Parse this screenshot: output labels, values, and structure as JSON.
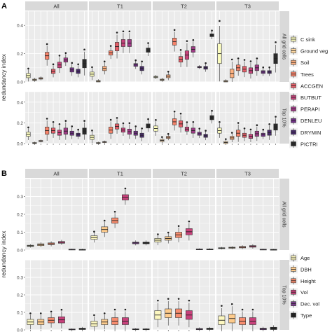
{
  "chart_data": [
    {
      "panel_letter": "A",
      "type": "box",
      "ylabel": "redundancy index",
      "ylim": [
        0,
        0.5
      ],
      "yticks": [
        0.0,
        0.2,
        0.4
      ],
      "ytick_labels": [
        "0.0",
        "0.2",
        "0.4"
      ],
      "columns": [
        "All",
        "T1",
        "T2",
        "T3"
      ],
      "rows": [
        "All grid cells",
        "Top 10%"
      ],
      "grid": true,
      "legend": {
        "placement": "right",
        "entries": [
          {
            "name": "C sink",
            "color": "#FCFDBF"
          },
          {
            "name": "Ground veg",
            "color": "#FDD7A0"
          },
          {
            "name": "Soil",
            "color": "#FDB07F"
          },
          {
            "name": "Trees",
            "color": "#F6836A"
          },
          {
            "name": "ACCGEN",
            "color": "#E45E68"
          },
          {
            "name": "BUTBUT",
            "color": "#C6437B"
          },
          {
            "name": "PERAPI",
            "color": "#9E3A85"
          },
          {
            "name": "DENLEU",
            "color": "#713087"
          },
          {
            "name": "DRYMIN",
            "color": "#472A69"
          },
          {
            "name": "PICTRI",
            "color": "#2A2A2A"
          }
        ]
      },
      "boxes": [
        [
          [
            [
              0.03,
              0.06
            ],
            [
              0.01,
              0.02
            ],
            [
              0.02,
              0.03
            ],
            [
              0.16,
              0.21
            ],
            [
              0.06,
              0.09
            ],
            [
              0.1,
              0.14
            ],
            [
              0.14,
              0.17
            ],
            [
              0.07,
              0.1
            ],
            [
              0.06,
              0.09
            ],
            [
              0.1,
              0.16
            ]
          ],
          [
            [
              0.04,
              0.07
            ],
            [
              0.0,
              0.01
            ],
            [
              0.08,
              0.11
            ],
            [
              0.19,
              0.22
            ],
            [
              0.22,
              0.28
            ],
            [
              0.25,
              0.3
            ],
            [
              0.25,
              0.3
            ],
            [
              0.11,
              0.13
            ],
            [
              0.08,
              0.11
            ],
            [
              0.21,
              0.24
            ]
          ],
          [
            [
              0.03,
              0.04
            ],
            [
              0.01,
              0.02
            ],
            [
              0.03,
              0.05
            ],
            [
              0.26,
              0.31
            ],
            [
              0.14,
              0.18
            ],
            [
              0.16,
              0.22
            ],
            [
              0.21,
              0.25
            ],
            [
              0.1,
              0.11
            ],
            [
              0.09,
              0.11
            ],
            [
              0.32,
              0.34
            ]
          ],
          [
            [
              0.13,
              0.27
            ],
            [
              0.0,
              0.01
            ],
            [
              0.03,
              0.09
            ],
            [
              0.08,
              0.12
            ],
            [
              0.07,
              0.11
            ],
            [
              0.06,
              0.1
            ],
            [
              0.08,
              0.12
            ],
            [
              0.06,
              0.08
            ],
            [
              0.06,
              0.08
            ],
            [
              0.13,
              0.2
            ]
          ]
        ],
        [
          [
            [
              0.07,
              0.11
            ],
            [
              0.0,
              0.01
            ],
            [
              0.02,
              0.03
            ],
            [
              0.09,
              0.16
            ],
            [
              0.1,
              0.15
            ],
            [
              0.08,
              0.13
            ],
            [
              0.09,
              0.15
            ],
            [
              0.08,
              0.12
            ],
            [
              0.07,
              0.1
            ],
            [
              0.09,
              0.15
            ]
          ],
          [
            [
              0.04,
              0.08
            ],
            [
              0.0,
              0.01
            ],
            [
              0.01,
              0.02
            ],
            [
              0.1,
              0.16
            ],
            [
              0.14,
              0.19
            ],
            [
              0.11,
              0.15
            ],
            [
              0.09,
              0.14
            ],
            [
              0.08,
              0.12
            ],
            [
              0.06,
              0.1
            ],
            [
              0.15,
              0.19
            ]
          ],
          [
            [
              0.12,
              0.17
            ],
            [
              0.02,
              0.04
            ],
            [
              0.05,
              0.07
            ],
            [
              0.18,
              0.24
            ],
            [
              0.16,
              0.22
            ],
            [
              0.12,
              0.16
            ],
            [
              0.1,
              0.15
            ],
            [
              0.08,
              0.11
            ],
            [
              0.06,
              0.09
            ],
            [
              0.23,
              0.27
            ]
          ],
          [
            [
              0.1,
              0.15
            ],
            [
              0.0,
              0.02
            ],
            [
              0.04,
              0.07
            ],
            [
              0.07,
              0.13
            ],
            [
              0.06,
              0.1
            ],
            [
              0.05,
              0.09
            ],
            [
              0.07,
              0.12
            ],
            [
              0.07,
              0.1
            ],
            [
              0.08,
              0.13
            ],
            [
              0.13,
              0.19
            ]
          ]
        ]
      ]
    },
    {
      "panel_letter": "B",
      "type": "box",
      "ylabel": "redundancy index",
      "ylim": [
        0,
        0.4
      ],
      "yticks": [
        0.0,
        0.1,
        0.2,
        0.3
      ],
      "ytick_labels": [
        "0.0",
        "0.1",
        "0.2",
        "0.3"
      ],
      "columns": [
        "All",
        "T1",
        "T2",
        "T3"
      ],
      "rows": [
        "All grid cells",
        "Top 10%"
      ],
      "grid": true,
      "legend": {
        "placement": "right",
        "entries": [
          {
            "name": "Age",
            "color": "#FCF7C0"
          },
          {
            "name": "DBH",
            "color": "#FDCB8C"
          },
          {
            "name": "Height",
            "color": "#F78C6E"
          },
          {
            "name": "Vol",
            "color": "#C8417B"
          },
          {
            "name": "Dec. vol",
            "color": "#7A3C8C"
          },
          {
            "name": "Type",
            "color": "#222222"
          }
        ]
      },
      "boxes": [
        [
          [
            [
              0.02,
              0.027
            ],
            [
              0.025,
              0.035
            ],
            [
              0.03,
              0.04
            ],
            [
              0.038,
              0.048
            ],
            [
              0.002,
              0.005
            ],
            [
              0.0,
              0.004
            ]
          ],
          [
            [
              0.06,
              0.08
            ],
            [
              0.1,
              0.13
            ],
            [
              0.15,
              0.18
            ],
            [
              0.28,
              0.31
            ],
            [
              0.035,
              0.045
            ],
            [
              0.035,
              0.045
            ]
          ],
          [
            [
              0.045,
              0.065
            ],
            [
              0.055,
              0.075
            ],
            [
              0.07,
              0.1
            ],
            [
              0.085,
              0.12
            ],
            [
              0.002,
              0.006
            ],
            [
              0.002,
              0.006
            ]
          ],
          [
            [
              0.008,
              0.013
            ],
            [
              0.01,
              0.016
            ],
            [
              0.012,
              0.02
            ],
            [
              0.016,
              0.025
            ],
            [
              0.002,
              0.005
            ],
            [
              0.001,
              0.004
            ]
          ]
        ],
        [
          [
            [
              0.03,
              0.06
            ],
            [
              0.03,
              0.06
            ],
            [
              0.04,
              0.07
            ],
            [
              0.04,
              0.075
            ],
            [
              0.001,
              0.005
            ],
            [
              0.002,
              0.01
            ]
          ],
          [
            [
              0.02,
              0.05
            ],
            [
              0.03,
              0.06
            ],
            [
              0.03,
              0.07
            ],
            [
              0.03,
              0.07
            ],
            [
              0.001,
              0.006
            ],
            [
              0.001,
              0.006
            ]
          ],
          [
            [
              0.06,
              0.11
            ],
            [
              0.07,
              0.12
            ],
            [
              0.07,
              0.12
            ],
            [
              0.06,
              0.11
            ],
            [
              0.001,
              0.008
            ],
            [
              0.002,
              0.01
            ]
          ],
          [
            [
              0.03,
              0.08
            ],
            [
              0.04,
              0.09
            ],
            [
              0.03,
              0.07
            ],
            [
              0.03,
              0.07
            ],
            [
              0.001,
              0.01
            ],
            [
              0.002,
              0.015
            ]
          ]
        ]
      ]
    }
  ]
}
